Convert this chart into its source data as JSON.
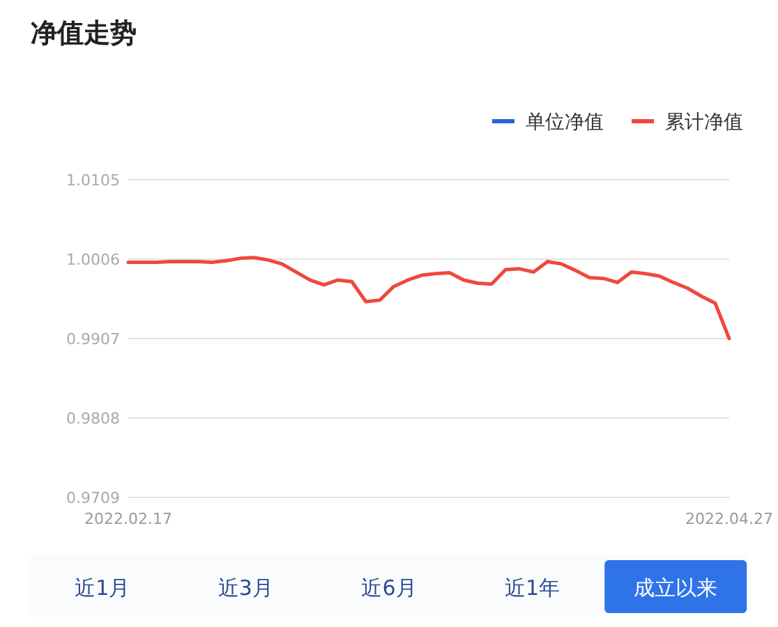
{
  "chart_data": {
    "type": "line",
    "title": "净值走势",
    "categories": [
      "2022.02.17",
      null,
      null,
      null,
      null,
      null,
      null,
      null,
      null,
      null,
      null,
      null,
      null,
      null,
      null,
      null,
      null,
      null,
      null,
      null,
      null,
      null,
      null,
      null,
      null,
      null,
      null,
      null,
      null,
      null,
      null,
      null,
      null,
      null,
      null,
      null,
      null,
      null,
      null,
      null,
      null,
      null,
      null,
      "2022.04.27"
    ],
    "series": [
      {
        "name": "单位净值",
        "color": "#2b63d9",
        "values": [
          null,
          null,
          null,
          null,
          null,
          null,
          null,
          null,
          null,
          null,
          null,
          null,
          null,
          null,
          null,
          null,
          null,
          null,
          null,
          null,
          null,
          null,
          null,
          null,
          null,
          null,
          null,
          null,
          null,
          null,
          null,
          null,
          null,
          null,
          null,
          null,
          null,
          null,
          null,
          null,
          null,
          null,
          null,
          null
        ]
      },
      {
        "name": "累计净值",
        "color": "#f0483c",
        "values": [
          1.0002,
          1.0002,
          1.0002,
          1.0003,
          1.0003,
          1.0003,
          1.0002,
          1.0004,
          1.0007,
          1.0008,
          1.0005,
          1.0,
          0.999,
          0.998,
          0.9974,
          0.998,
          0.9978,
          0.9953,
          0.9955,
          0.9972,
          0.998,
          0.9986,
          0.9988,
          0.9989,
          0.998,
          0.9976,
          0.9975,
          0.9993,
          0.9994,
          0.999,
          1.0003,
          1.0,
          0.9992,
          0.9983,
          0.9982,
          0.9977,
          0.999,
          0.9988,
          0.9985,
          0.9977,
          0.997,
          0.996,
          0.9951,
          0.9907
        ]
      }
    ],
    "ylim": [
      0.9709,
      1.0105
    ],
    "yticks": [
      0.9709,
      0.9808,
      0.9907,
      1.0006,
      1.0105
    ],
    "grid": "y",
    "legend": "top right",
    "annotations": [
      "近1月",
      "近3月",
      "近6月",
      "近1年",
      "成立以来"
    ]
  }
}
